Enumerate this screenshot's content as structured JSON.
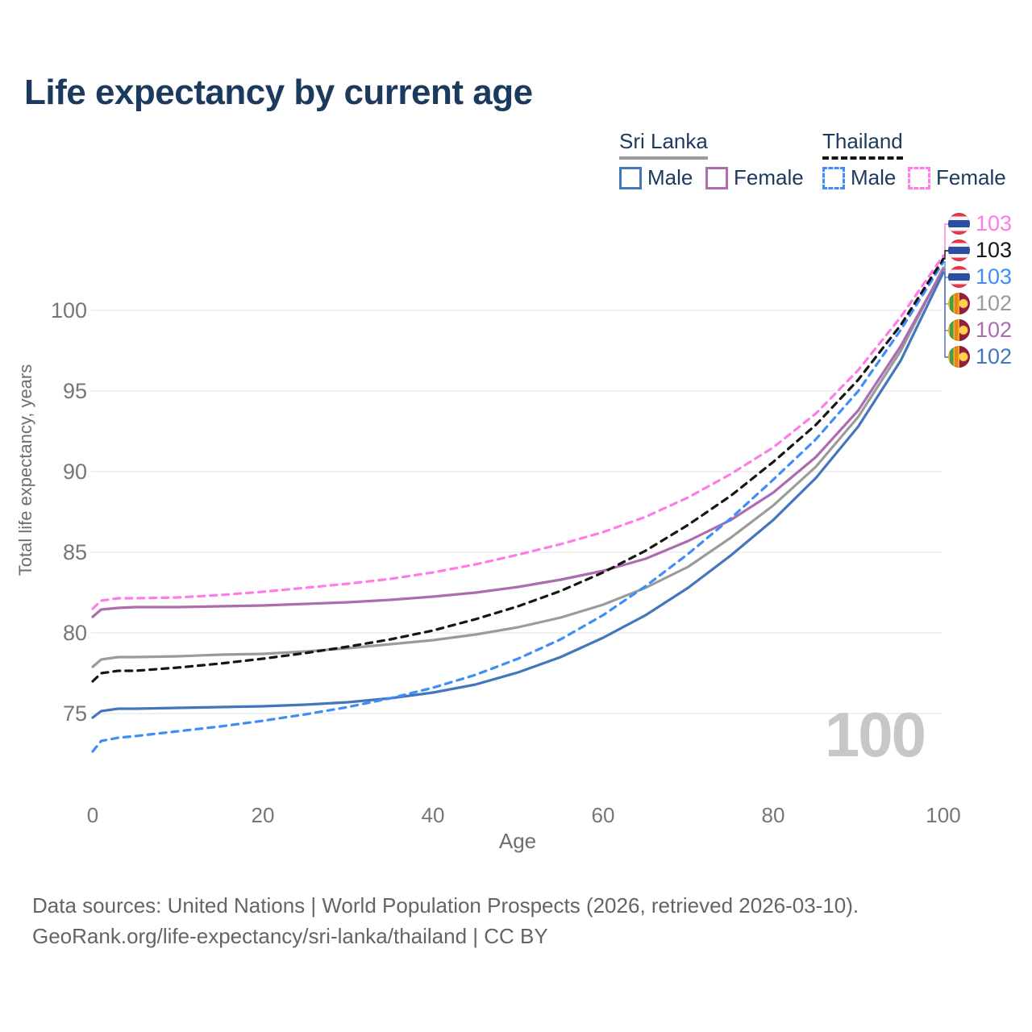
{
  "title": "Life expectancy by current age",
  "legend": {
    "groups": [
      {
        "name": "Sri Lanka",
        "line_style": "solid",
        "underline_color": "#9b9b9b",
        "items": [
          {
            "label": "Male",
            "color": "#4376BA",
            "dash": false
          },
          {
            "label": "Female",
            "color": "#AD6CAE",
            "dash": false
          }
        ]
      },
      {
        "name": "Thailand",
        "line_style": "dashed",
        "underline_color": "#161616",
        "items": [
          {
            "label": "Male",
            "color": "#3E8EF7",
            "dash": true
          },
          {
            "label": "Female",
            "color": "#FF7BE5",
            "dash": true
          }
        ]
      }
    ]
  },
  "chart_data": {
    "type": "line",
    "title": "Life expectancy by current age",
    "xlabel": "Age",
    "ylabel": "Total life expectancy, years",
    "x_ticks": [
      0,
      20,
      40,
      60,
      80,
      100
    ],
    "y_ticks": [
      75,
      80,
      85,
      90,
      95,
      100
    ],
    "xlim": [
      0,
      100
    ],
    "ylim": [
      72.5,
      103.5
    ],
    "grid": "horizontal",
    "legend_position": "top-right",
    "hover_age_indicator": "100",
    "series": [
      {
        "name": "Thailand Female",
        "country": "Thailand",
        "sex": "Female",
        "color": "#FF7BE5",
        "dash": true,
        "end_label": "103",
        "flag": "thailand",
        "points": [
          [
            0,
            81.5
          ],
          [
            1,
            82.0
          ],
          [
            3,
            82.15
          ],
          [
            5,
            82.15
          ],
          [
            10,
            82.2
          ],
          [
            15,
            82.35
          ],
          [
            20,
            82.55
          ],
          [
            25,
            82.8
          ],
          [
            30,
            83.05
          ],
          [
            35,
            83.35
          ],
          [
            40,
            83.75
          ],
          [
            45,
            84.25
          ],
          [
            50,
            84.85
          ],
          [
            55,
            85.5
          ],
          [
            60,
            86.25
          ],
          [
            65,
            87.2
          ],
          [
            70,
            88.4
          ],
          [
            75,
            89.85
          ],
          [
            80,
            91.5
          ],
          [
            85,
            93.6
          ],
          [
            90,
            96.3
          ],
          [
            95,
            99.6
          ],
          [
            100,
            103.4
          ]
        ]
      },
      {
        "name": "Thailand Total",
        "country": "Thailand",
        "sex": "Both",
        "color": "#161616",
        "dash": true,
        "end_label": "103",
        "flag": "thailand",
        "points": [
          [
            0,
            77.0
          ],
          [
            1,
            77.5
          ],
          [
            3,
            77.65
          ],
          [
            5,
            77.65
          ],
          [
            10,
            77.85
          ],
          [
            15,
            78.1
          ],
          [
            20,
            78.4
          ],
          [
            25,
            78.75
          ],
          [
            30,
            79.15
          ],
          [
            35,
            79.6
          ],
          [
            40,
            80.15
          ],
          [
            45,
            80.85
          ],
          [
            50,
            81.65
          ],
          [
            55,
            82.6
          ],
          [
            60,
            83.75
          ],
          [
            65,
            85.1
          ],
          [
            70,
            86.7
          ],
          [
            75,
            88.5
          ],
          [
            80,
            90.6
          ],
          [
            85,
            92.9
          ],
          [
            90,
            95.7
          ],
          [
            95,
            99.1
          ],
          [
            100,
            103.2
          ]
        ]
      },
      {
        "name": "Thailand Male",
        "country": "Thailand",
        "sex": "Male",
        "color": "#3E8EF7",
        "dash": true,
        "end_label": "103",
        "flag": "thailand",
        "points": [
          [
            0,
            72.65
          ],
          [
            1,
            73.3
          ],
          [
            3,
            73.5
          ],
          [
            5,
            73.6
          ],
          [
            10,
            73.9
          ],
          [
            15,
            74.2
          ],
          [
            20,
            74.55
          ],
          [
            25,
            74.95
          ],
          [
            30,
            75.4
          ],
          [
            35,
            75.95
          ],
          [
            40,
            76.6
          ],
          [
            45,
            77.4
          ],
          [
            50,
            78.4
          ],
          [
            55,
            79.6
          ],
          [
            60,
            81.1
          ],
          [
            65,
            82.9
          ],
          [
            70,
            84.9
          ],
          [
            75,
            87.1
          ],
          [
            80,
            89.5
          ],
          [
            85,
            92.0
          ],
          [
            90,
            95.0
          ],
          [
            95,
            98.8
          ],
          [
            100,
            103.0
          ]
        ]
      },
      {
        "name": "Sri Lanka Total",
        "country": "Sri Lanka",
        "sex": "Both",
        "color": "#9B9B9B",
        "dash": false,
        "end_label": "102",
        "flag": "sri-lanka",
        "points": [
          [
            0,
            77.9
          ],
          [
            1,
            78.35
          ],
          [
            3,
            78.5
          ],
          [
            5,
            78.5
          ],
          [
            10,
            78.55
          ],
          [
            15,
            78.65
          ],
          [
            20,
            78.7
          ],
          [
            25,
            78.85
          ],
          [
            30,
            79.05
          ],
          [
            35,
            79.3
          ],
          [
            40,
            79.55
          ],
          [
            45,
            79.9
          ],
          [
            50,
            80.35
          ],
          [
            55,
            80.95
          ],
          [
            60,
            81.75
          ],
          [
            65,
            82.8
          ],
          [
            70,
            84.1
          ],
          [
            75,
            85.9
          ],
          [
            80,
            87.9
          ],
          [
            85,
            90.3
          ],
          [
            90,
            93.4
          ],
          [
            95,
            97.5
          ],
          [
            100,
            102.65
          ]
        ]
      },
      {
        "name": "Sri Lanka Female",
        "country": "Sri Lanka",
        "sex": "Female",
        "color": "#AD6CAE",
        "dash": false,
        "end_label": "102",
        "flag": "sri-lanka",
        "points": [
          [
            0,
            81.0
          ],
          [
            1,
            81.45
          ],
          [
            3,
            81.55
          ],
          [
            5,
            81.6
          ],
          [
            10,
            81.6
          ],
          [
            15,
            81.65
          ],
          [
            20,
            81.7
          ],
          [
            25,
            81.8
          ],
          [
            30,
            81.9
          ],
          [
            35,
            82.05
          ],
          [
            40,
            82.25
          ],
          [
            45,
            82.5
          ],
          [
            50,
            82.85
          ],
          [
            55,
            83.3
          ],
          [
            60,
            83.85
          ],
          [
            65,
            84.6
          ],
          [
            70,
            85.7
          ],
          [
            75,
            87.0
          ],
          [
            80,
            88.7
          ],
          [
            85,
            90.9
          ],
          [
            90,
            93.8
          ],
          [
            95,
            97.8
          ],
          [
            100,
            102.55
          ]
        ]
      },
      {
        "name": "Sri Lanka Male",
        "country": "Sri Lanka",
        "sex": "Male",
        "color": "#4376BA",
        "dash": false,
        "end_label": "102",
        "flag": "sri-lanka",
        "points": [
          [
            0,
            74.75
          ],
          [
            1,
            75.15
          ],
          [
            3,
            75.3
          ],
          [
            5,
            75.3
          ],
          [
            10,
            75.35
          ],
          [
            15,
            75.4
          ],
          [
            20,
            75.45
          ],
          [
            25,
            75.55
          ],
          [
            30,
            75.7
          ],
          [
            35,
            75.95
          ],
          [
            40,
            76.3
          ],
          [
            45,
            76.8
          ],
          [
            50,
            77.55
          ],
          [
            55,
            78.5
          ],
          [
            60,
            79.7
          ],
          [
            65,
            81.1
          ],
          [
            70,
            82.8
          ],
          [
            75,
            84.8
          ],
          [
            80,
            87.0
          ],
          [
            85,
            89.6
          ],
          [
            90,
            92.8
          ],
          [
            95,
            96.9
          ],
          [
            100,
            102.35
          ]
        ]
      }
    ]
  },
  "watermark": "100",
  "footer": {
    "line1": "Data sources: United Nations | World Population Prospects (2026, retrieved 2026-03-10).",
    "line2": "GeoRank.org/life-expectancy/sri-lanka/thailand | CC BY"
  },
  "colors": {
    "title_text": "#1c3a5e",
    "tick_text": "#767676",
    "gridline": "#ececec",
    "watermark": "#c7c7c7",
    "footer_text": "#646464"
  }
}
